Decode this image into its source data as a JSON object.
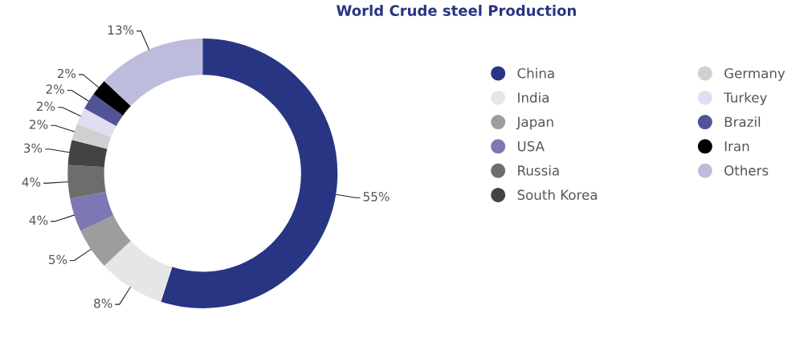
{
  "chart_data": {
    "type": "donut",
    "title": "World Crude steel Production",
    "categories": [
      "China",
      "India",
      "Japan",
      "USA",
      "Russia",
      "South Korea",
      "Germany",
      "Turkey",
      "Brazil",
      "Iran",
      "Others"
    ],
    "values": [
      55,
      8,
      5,
      4,
      4,
      3,
      2,
      2,
      2,
      2,
      13
    ],
    "colors": [
      "#283583",
      "#e6e6e6",
      "#9d9d9d",
      "#7b78b4",
      "#6d6d6d",
      "#434343",
      "#d0d0d0",
      "#e0def0",
      "#505496",
      "#000000",
      "#bebcdc"
    ],
    "value_labels": [
      "55%",
      "8%",
      "5%",
      "4%",
      "4%",
      "3%",
      "2%",
      "2%",
      "2%",
      "2%",
      "13%"
    ],
    "legend": "right"
  }
}
